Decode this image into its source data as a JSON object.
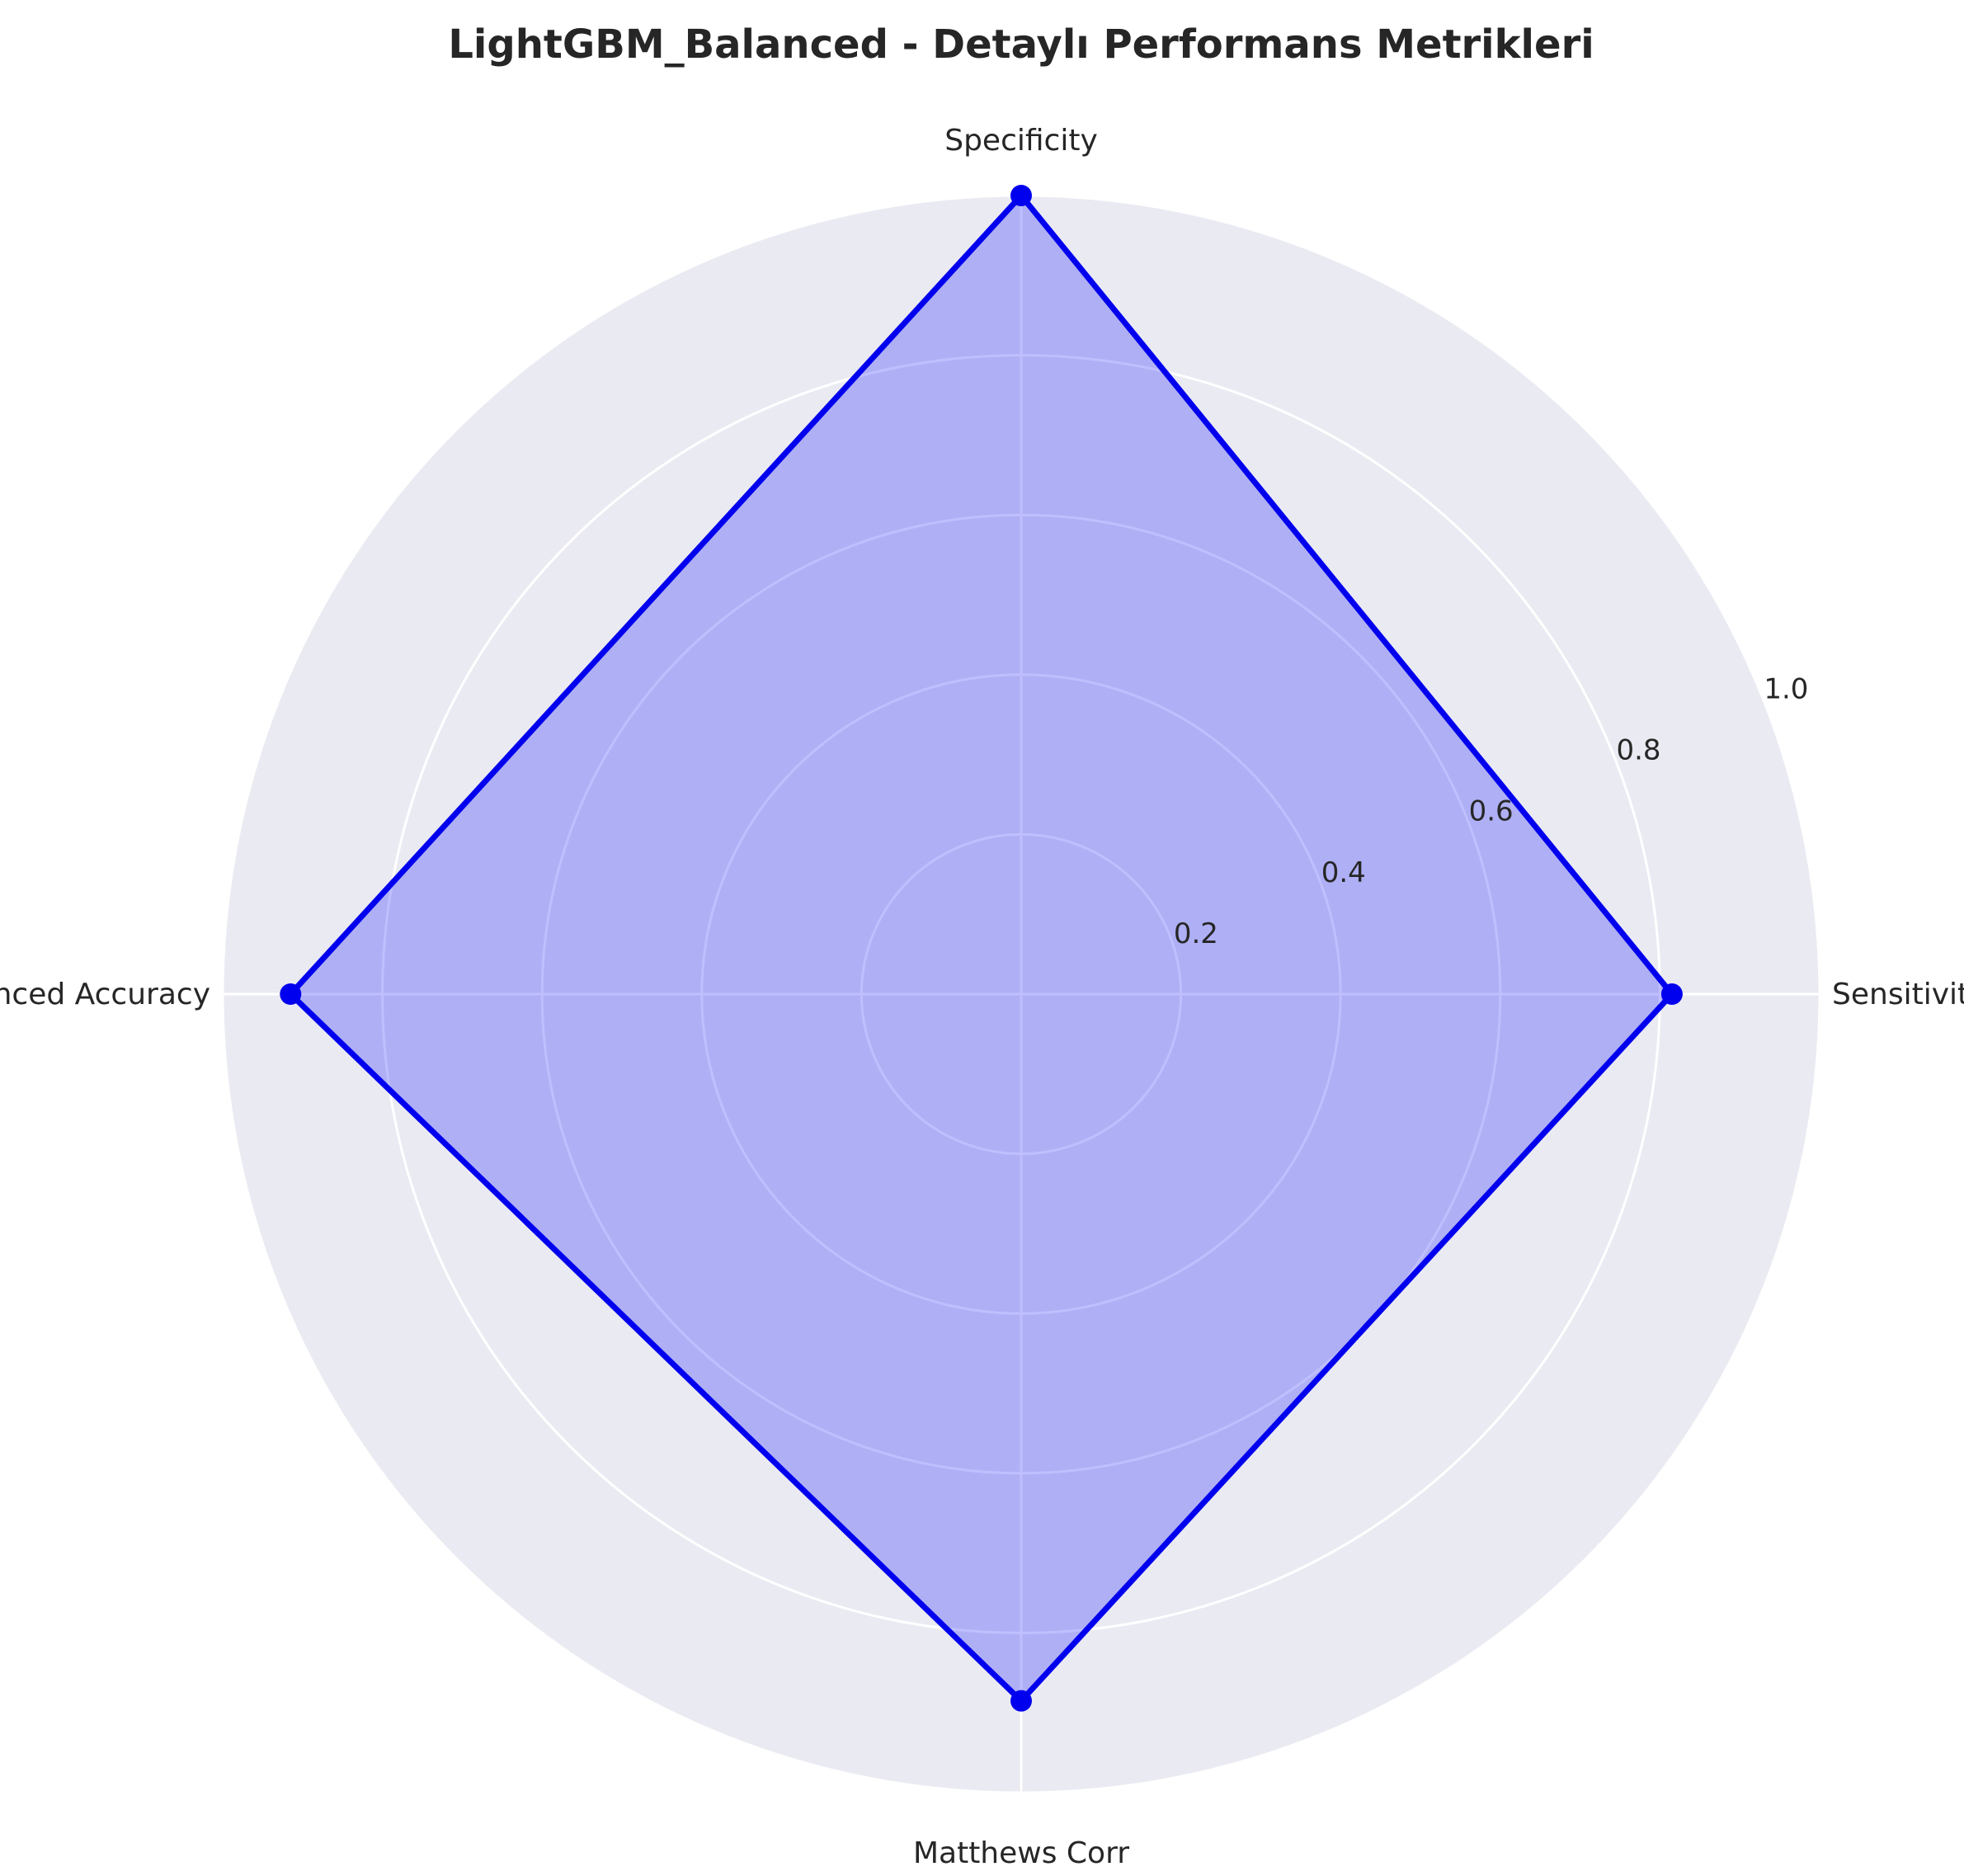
{
  "chart_data": {
    "type": "radar",
    "title": "LightGBM_Balanced - Detaylı Performans Metrikleri",
    "categories": [
      "Sensitivity",
      "Specificity",
      "Balanced Accuracy",
      "Matthews Corr"
    ],
    "series": [
      {
        "values": [
          0.815,
          1.0,
          0.915,
          0.885
        ]
      }
    ],
    "rlim": [
      0,
      1.0
    ],
    "r_ticks": [
      0.2,
      0.4,
      0.6,
      0.8,
      1.0
    ],
    "r_tick_labels": [
      "0.2",
      "0.4",
      "0.6",
      "0.8",
      "1.0"
    ],
    "grid": true,
    "colors": {
      "line": "#0000ee",
      "fill": "#0000ff",
      "fill_opacity": 0.25,
      "background": "#eaeaf2",
      "grid": "#ffffff"
    }
  }
}
